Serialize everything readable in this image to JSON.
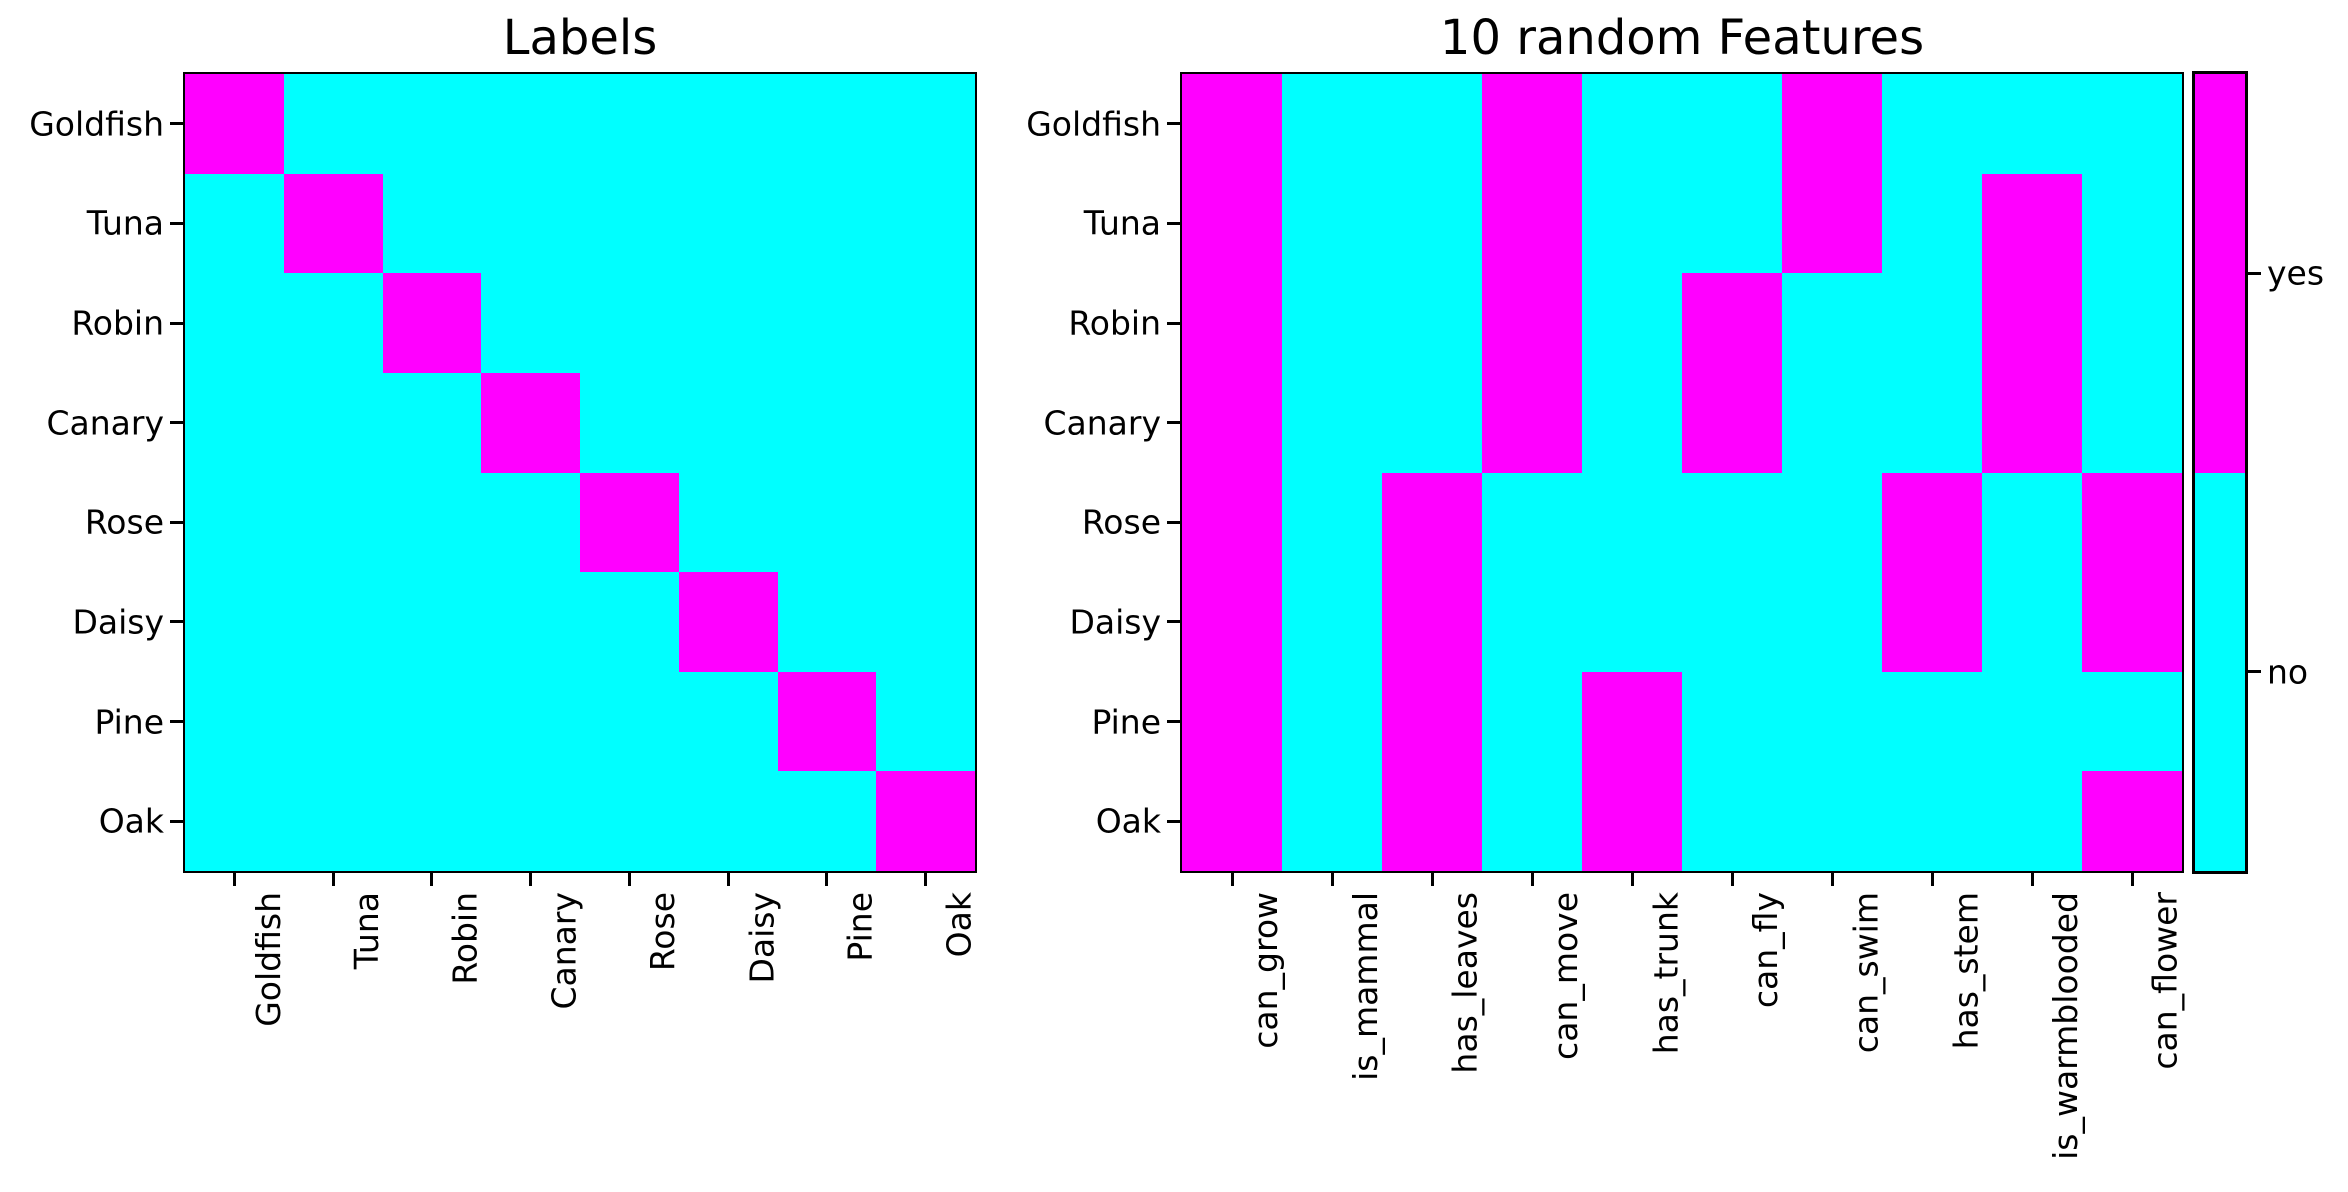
{
  "figure": {
    "background": "#ffffff"
  },
  "colors": {
    "yes": "#ff00ff",
    "no": "#00ffff",
    "text": "#000000"
  },
  "chart_data": [
    {
      "type": "heatmap",
      "title": "Labels",
      "rows": [
        "Goldfish",
        "Tuna",
        "Robin",
        "Canary",
        "Rose",
        "Daisy",
        "Pine",
        "Oak"
      ],
      "columns": [
        "Goldfish",
        "Tuna",
        "Robin",
        "Canary",
        "Rose",
        "Daisy",
        "Pine",
        "Oak"
      ],
      "values": [
        [
          1,
          0,
          0,
          0,
          0,
          0,
          0,
          0
        ],
        [
          0,
          1,
          0,
          0,
          0,
          0,
          0,
          0
        ],
        [
          0,
          0,
          1,
          0,
          0,
          0,
          0,
          0
        ],
        [
          0,
          0,
          0,
          1,
          0,
          0,
          0,
          0
        ],
        [
          0,
          0,
          0,
          0,
          1,
          0,
          0,
          0
        ],
        [
          0,
          0,
          0,
          0,
          0,
          1,
          0,
          0
        ],
        [
          0,
          0,
          0,
          0,
          0,
          0,
          1,
          0
        ],
        [
          0,
          0,
          0,
          0,
          0,
          0,
          0,
          1
        ]
      ],
      "value_legend": {
        "1": "yes",
        "0": "no"
      },
      "x_tick_rotation": 90,
      "grid": false
    },
    {
      "type": "heatmap",
      "title": "10 random Features",
      "rows": [
        "Goldfish",
        "Tuna",
        "Robin",
        "Canary",
        "Rose",
        "Daisy",
        "Pine",
        "Oak"
      ],
      "columns": [
        "can_grow",
        "is_mammal",
        "has_leaves",
        "can_move",
        "has_trunk",
        "can_fly",
        "can_swim",
        "has_stem",
        "is_warmblooded",
        "can_flower"
      ],
      "values": [
        [
          1,
          0,
          0,
          1,
          0,
          0,
          1,
          0,
          0,
          0
        ],
        [
          1,
          0,
          0,
          1,
          0,
          0,
          1,
          0,
          1,
          0
        ],
        [
          1,
          0,
          0,
          1,
          0,
          1,
          0,
          0,
          1,
          0
        ],
        [
          1,
          0,
          0,
          1,
          0,
          1,
          0,
          0,
          1,
          0
        ],
        [
          1,
          0,
          1,
          0,
          0,
          0,
          0,
          1,
          0,
          1
        ],
        [
          1,
          0,
          1,
          0,
          0,
          0,
          0,
          1,
          0,
          1
        ],
        [
          1,
          0,
          1,
          0,
          1,
          0,
          0,
          0,
          0,
          0
        ],
        [
          1,
          0,
          1,
          0,
          1,
          0,
          0,
          0,
          0,
          1
        ]
      ],
      "value_legend": {
        "1": "yes",
        "0": "no"
      },
      "x_tick_rotation": 90,
      "grid": false
    }
  ],
  "colorbar": {
    "orientation": "vertical",
    "ticks": [
      {
        "label": "yes",
        "value": 1
      },
      {
        "label": "no",
        "value": 0
      }
    ]
  }
}
